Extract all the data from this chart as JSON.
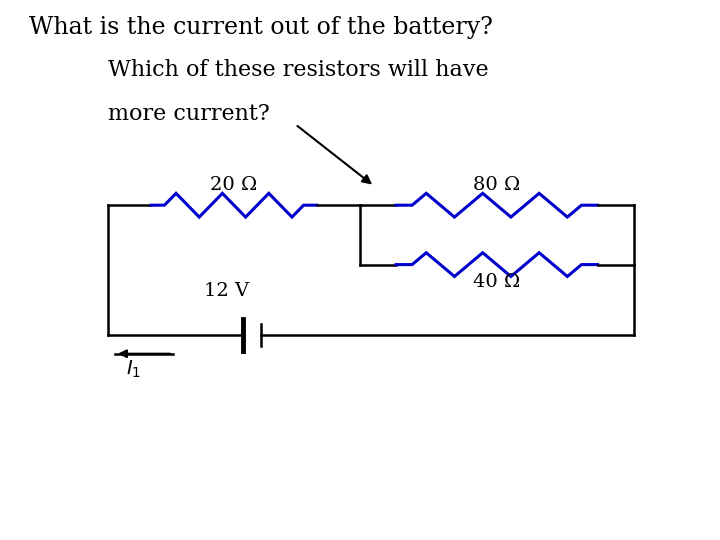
{
  "title": "What is the current out of the battery?",
  "subtitle_line1": "Which of these resistors will have",
  "subtitle_line2": "more current?",
  "resistor_color": "#0000CC",
  "wire_color": "#000000",
  "text_color": "#000000",
  "label_20": "20 Ω",
  "label_80": "80 Ω",
  "label_40": "40 Ω",
  "label_voltage": "12 V",
  "background_color": "#ffffff",
  "title_fontsize": 17,
  "subtitle_fontsize": 16,
  "label_fontsize": 14
}
